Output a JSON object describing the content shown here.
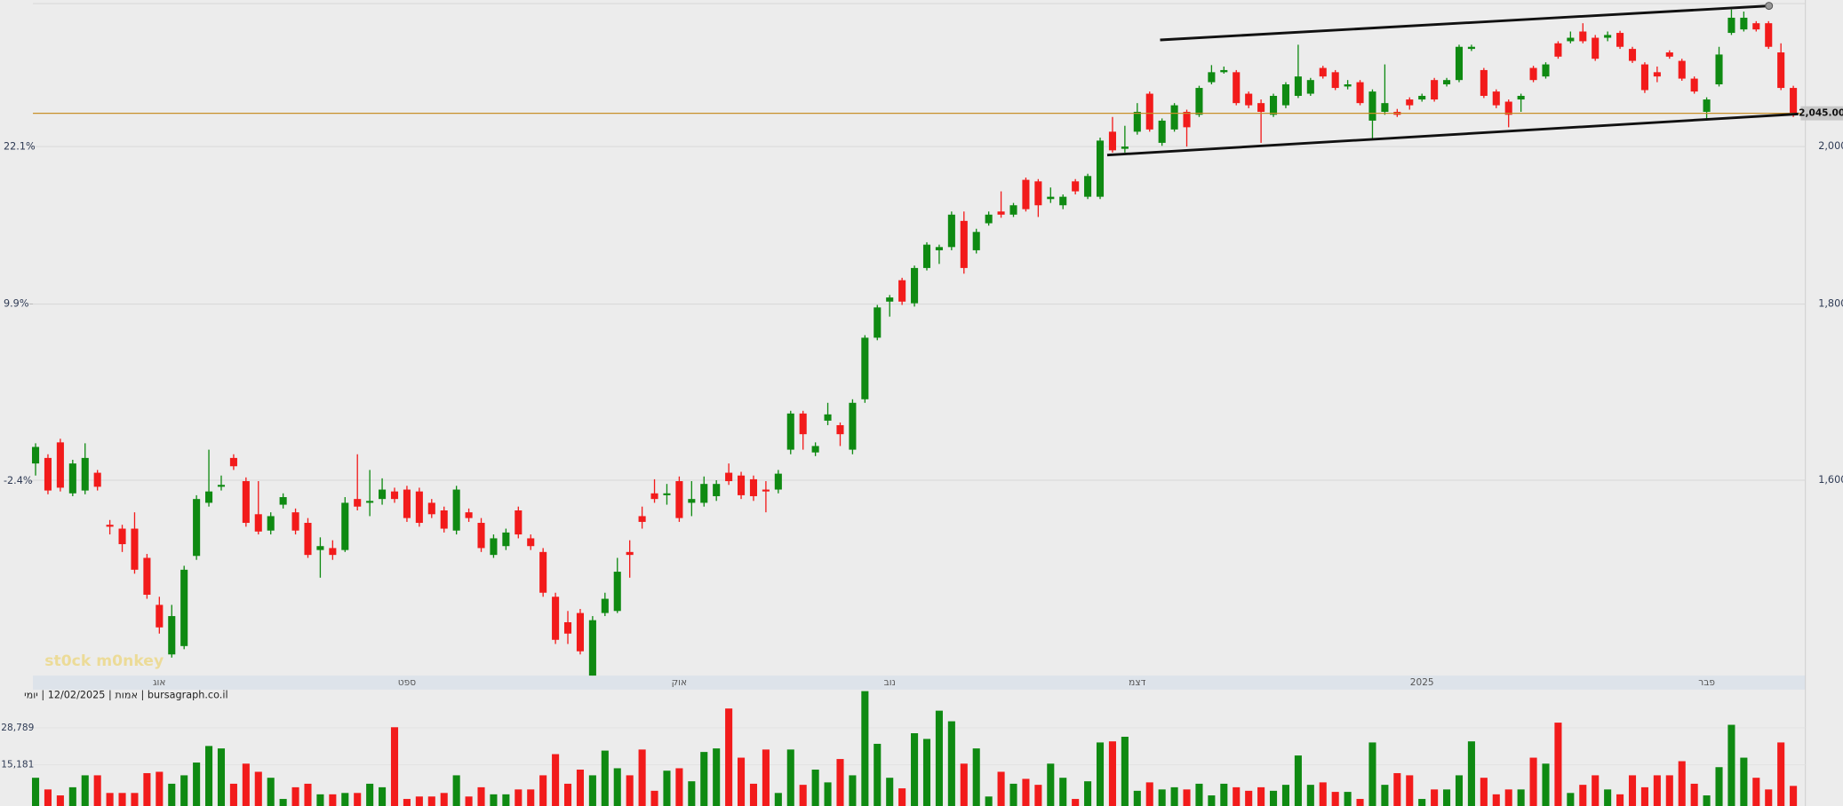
{
  "chart_data": {
    "type": "candlestick",
    "title": "bursagraph.co.il | אמות | 12/02/2025 | יומי",
    "watermark": "st0ck m0nkey",
    "log_scale": true,
    "grid": true,
    "up_color": "#0f8a12",
    "down_color": "#f21b1b",
    "categories": [
      null,
      null,
      null,
      null,
      null,
      null,
      null,
      null,
      null,
      null,
      "אוג",
      null,
      null,
      null,
      null,
      null,
      null,
      null,
      null,
      null,
      null,
      null,
      null,
      null,
      null,
      null,
      null,
      null,
      null,
      null,
      "ספט",
      null,
      null,
      null,
      null,
      null,
      null,
      null,
      null,
      null,
      null,
      null,
      null,
      null,
      null,
      null,
      null,
      null,
      null,
      null,
      null,
      null,
      "אוק",
      null,
      null,
      null,
      null,
      null,
      null,
      null,
      null,
      null,
      null,
      null,
      null,
      null,
      null,
      null,
      null,
      "נוב",
      null,
      null,
      null,
      null,
      null,
      null,
      null,
      null,
      null,
      null,
      null,
      null,
      null,
      null,
      null,
      null,
      null,
      null,
      null,
      "דצמ",
      null,
      null,
      null,
      null,
      null,
      null,
      null,
      null,
      null,
      null,
      null,
      null,
      null,
      null,
      null,
      null,
      null,
      null,
      null,
      null,
      null,
      null,
      "2025",
      null,
      null,
      null,
      null,
      null,
      null,
      null,
      null,
      null,
      null,
      null,
      null,
      null,
      null,
      null,
      null,
      null,
      null,
      null,
      null,
      null,
      null,
      "פבר",
      null,
      null,
      null,
      null,
      null,
      null,
      null
    ],
    "open": [
      1618,
      1624,
      1641,
      1586,
      1589,
      1608,
      1553,
      1549,
      1549,
      1519,
      1472,
      1424,
      1432,
      1521,
      1576,
      1593,
      1624,
      1599,
      1564,
      1547,
      1574,
      1566,
      1555,
      1527,
      1529,
      1527,
      1580,
      1576,
      1580,
      1588,
      1590,
      1588,
      1576,
      1568,
      1547,
      1566,
      1555,
      1522,
      1531,
      1568,
      1539,
      1525,
      1480,
      1455,
      1464,
      1404,
      1464,
      1466,
      1525,
      1562,
      1586,
      1584,
      1599,
      1576,
      1576,
      1583,
      1608,
      1605,
      1601,
      1590,
      1590,
      1633,
      1673,
      1630,
      1665,
      1660,
      1633,
      1689,
      1760,
      1803,
      1829,
      1801,
      1844,
      1866,
      1870,
      1903,
      1866,
      1900,
      1915,
      1911,
      1956,
      1954,
      1931,
      1923,
      1954,
      1934,
      1934,
      2020,
      1997,
      2020,
      2072,
      2005,
      2023,
      2047,
      2043,
      2088,
      2102,
      2102,
      2072,
      2059,
      2043,
      2056,
      2069,
      2072,
      2108,
      2102,
      2082,
      2088,
      2035,
      2047,
      2047,
      2064,
      2064,
      2091,
      2085,
      2091,
      2135,
      2105,
      2075,
      2061,
      2064,
      2108,
      2096,
      2143,
      2146,
      2160,
      2151,
      2151,
      2158,
      2135,
      2113,
      2102,
      2130,
      2118,
      2093,
      2047,
      2085,
      2158,
      2163,
      2172,
      2172,
      2130,
      2080
    ],
    "high": [
      1640,
      1628,
      1645,
      1622,
      1640,
      1611,
      1558,
      1553,
      1566,
      1523,
      1480,
      1472,
      1511,
      1584,
      1633,
      1605,
      1628,
      1603,
      1599,
      1566,
      1586,
      1570,
      1560,
      1540,
      1537,
      1582,
      1628,
      1611,
      1602,
      1592,
      1594,
      1592,
      1580,
      1572,
      1594,
      1570,
      1560,
      1543,
      1549,
      1572,
      1543,
      1529,
      1484,
      1466,
      1468,
      1461,
      1484,
      1519,
      1537,
      1572,
      1601,
      1596,
      1604,
      1599,
      1604,
      1600,
      1618,
      1609,
      1605,
      1599,
      1611,
      1676,
      1676,
      1641,
      1685,
      1663,
      1689,
      1763,
      1799,
      1811,
      1832,
      1847,
      1876,
      1873,
      1915,
      1915,
      1893,
      1915,
      1941,
      1926,
      1959,
      1957,
      1946,
      1937,
      1957,
      1964,
      2012,
      2040,
      2028,
      2059,
      2075,
      2038,
      2059,
      2050,
      2083,
      2112,
      2110,
      2105,
      2075,
      2064,
      2072,
      2088,
      2141,
      2094,
      2111,
      2105,
      2091,
      2091,
      2078,
      2113,
      2051,
      2067,
      2072,
      2094,
      2094,
      2141,
      2141,
      2108,
      2078,
      2064,
      2072,
      2111,
      2116,
      2146,
      2160,
      2172,
      2155,
      2160,
      2161,
      2138,
      2116,
      2110,
      2133,
      2121,
      2096,
      2067,
      2138,
      2192,
      2189,
      2175,
      2175,
      2143,
      2083
    ],
    "low": [
      1605,
      1585,
      1588,
      1583,
      1585,
      1589,
      1543,
      1525,
      1503,
      1478,
      1444,
      1421,
      1429,
      1517,
      1572,
      1589,
      1611,
      1551,
      1543,
      1543,
      1570,
      1543,
      1519,
      1499,
      1517,
      1525,
      1568,
      1562,
      1574,
      1576,
      1556,
      1551,
      1560,
      1545,
      1543,
      1556,
      1525,
      1519,
      1527,
      1539,
      1527,
      1480,
      1434,
      1434,
      1424,
      1404,
      1461,
      1464,
      1499,
      1549,
      1576,
      1574,
      1556,
      1562,
      1572,
      1578,
      1595,
      1580,
      1578,
      1566,
      1586,
      1628,
      1633,
      1626,
      1660,
      1637,
      1628,
      1685,
      1757,
      1785,
      1799,
      1797,
      1841,
      1849,
      1866,
      1837,
      1862,
      1897,
      1907,
      1908,
      1915,
      1908,
      1926,
      1918,
      1937,
      1931,
      1931,
      1992,
      1992,
      2016,
      2020,
      2001,
      2020,
      2000,
      2040,
      2085,
      2100,
      2056,
      2052,
      2005,
      2040,
      2052,
      2066,
      2069,
      2093,
      2077,
      2078,
      2056,
      2011,
      2043,
      2040,
      2050,
      2061,
      2061,
      2082,
      2088,
      2132,
      2066,
      2052,
      2026,
      2047,
      2088,
      2093,
      2121,
      2143,
      2143,
      2118,
      2146,
      2135,
      2115,
      2073,
      2088,
      2121,
      2090,
      2072,
      2035,
      2082,
      2155,
      2160,
      2160,
      2135,
      2077,
      2040
    ],
    "close": [
      1636,
      1589,
      1592,
      1618,
      1624,
      1593,
      1551,
      1533,
      1507,
      1482,
      1450,
      1461,
      1507,
      1580,
      1588,
      1595,
      1615,
      1555,
      1546,
      1562,
      1582,
      1547,
      1522,
      1531,
      1522,
      1576,
      1572,
      1578,
      1590,
      1580,
      1560,
      1555,
      1564,
      1549,
      1590,
      1560,
      1529,
      1539,
      1545,
      1543,
      1531,
      1484,
      1438,
      1444,
      1427,
      1457,
      1478,
      1505,
      1522,
      1556,
      1580,
      1586,
      1560,
      1580,
      1596,
      1596,
      1599,
      1584,
      1583,
      1588,
      1607,
      1673,
      1650,
      1637,
      1672,
      1650,
      1685,
      1760,
      1796,
      1808,
      1803,
      1844,
      1873,
      1870,
      1911,
      1844,
      1889,
      1911,
      1911,
      1923,
      1918,
      1923,
      1934,
      1934,
      1941,
      1961,
      2008,
      1995,
      2000,
      2047,
      2023,
      2035,
      2056,
      2026,
      2080,
      2102,
      2105,
      2059,
      2056,
      2047,
      2069,
      2085,
      2096,
      2091,
      2096,
      2080,
      2085,
      2059,
      2075,
      2059,
      2043,
      2056,
      2069,
      2064,
      2091,
      2138,
      2138,
      2069,
      2056,
      2043,
      2069,
      2091,
      2113,
      2124,
      2151,
      2146,
      2121,
      2155,
      2138,
      2118,
      2077,
      2096,
      2124,
      2093,
      2075,
      2064,
      2127,
      2180,
      2180,
      2163,
      2138,
      2080,
      2045
    ],
    "ylim": [
      1404,
      2206
    ],
    "yticks": [
      {
        "value": 1600,
        "label": "1,600"
      },
      {
        "value": 1800,
        "label": "1,800"
      },
      {
        "value": 2000,
        "label": "2,000"
      }
    ],
    "y2lim": [
      -14.3,
      34.7
    ],
    "y2ticks": [
      {
        "value": -2.4,
        "label": "-2.4%"
      },
      {
        "value": 9.9,
        "label": "9.9%"
      },
      {
        "value": 22.1,
        "label": "22.1%"
      }
    ],
    "last_price": {
      "value": 2045,
      "label": "2,045.00",
      "color": "#c8902a"
    },
    "volume": {
      "values": [
        10400,
        6100,
        3900,
        6900,
        11300,
        11300,
        4800,
        4800,
        4800,
        12100,
        12600,
        8200,
        11300,
        16000,
        22100,
        21200,
        8200,
        15600,
        12600,
        10400,
        2600,
        6900,
        8200,
        4300,
        4300,
        4800,
        4800,
        8200,
        6900,
        29000,
        2600,
        3500,
        3500,
        4800,
        11300,
        3500,
        6900,
        4300,
        4300,
        6100,
        6100,
        11300,
        19100,
        8200,
        13400,
        11300,
        20400,
        13900,
        11300,
        20800,
        5600,
        13000,
        13900,
        9100,
        19900,
        21200,
        35900,
        17800,
        8200,
        20800,
        4800,
        20800,
        7800,
        13400,
        8700,
        17300,
        11300,
        42300,
        22900,
        10400,
        6500,
        26800,
        24700,
        35100,
        31200,
        15600,
        21200,
        3500,
        12600,
        8200,
        10000,
        7800,
        15600,
        10400,
        2600,
        9100,
        23400,
        23800,
        25500,
        5600,
        8700,
        6100,
        6900,
        6100,
        8200,
        3900,
        8200,
        6900,
        5600,
        6900,
        5600,
        7800,
        18600,
        7800,
        8700,
        5200,
        5200,
        2600,
        23400,
        7800,
        12100,
        11300,
        2600,
        6100,
        6100,
        11300,
        23800,
        10400,
        4300,
        6100,
        6100,
        17800,
        15600,
        30700,
        4800,
        7800,
        11300,
        6100,
        4300,
        11300,
        6900,
        11300,
        11300,
        16500,
        8200,
        3900,
        14300,
        29900,
        17800,
        10400,
        6100,
        23400,
        7400
      ],
      "ylim": [
        0,
        42400
      ],
      "yticks": [
        {
          "value": 28789,
          "label": "28,789"
        },
        {
          "value": 15181,
          "label": "15,181"
        }
      ]
    }
  }
}
